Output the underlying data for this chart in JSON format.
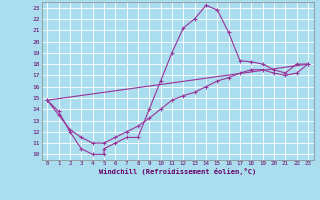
{
  "xlabel": "Windchill (Refroidissement éolien,°C)",
  "background_color": "#aaddee",
  "grid_color": "#ffffff",
  "line_color": "#993399",
  "xlim": [
    -0.5,
    23.5
  ],
  "ylim": [
    9.5,
    23.5
  ],
  "xtick_vals": [
    0,
    1,
    2,
    3,
    4,
    5,
    6,
    7,
    8,
    9,
    10,
    11,
    12,
    13,
    14,
    15,
    16,
    17,
    18,
    19,
    20,
    21,
    22,
    23
  ],
  "ytick_vals": [
    10,
    11,
    12,
    13,
    14,
    15,
    16,
    17,
    18,
    19,
    20,
    21,
    22,
    23
  ],
  "curve1_x": [
    0,
    1,
    2,
    3,
    4,
    5,
    5,
    6,
    7,
    8,
    9,
    10,
    11,
    12,
    13,
    14,
    15,
    16,
    17,
    18,
    19,
    20,
    21,
    22,
    23
  ],
  "curve1_y": [
    14.8,
    13.8,
    12.0,
    10.5,
    10.0,
    10.0,
    10.5,
    11.0,
    11.5,
    11.5,
    14.0,
    16.5,
    19.0,
    21.2,
    22.0,
    23.2,
    22.8,
    20.8,
    18.3,
    18.2,
    18.0,
    17.5,
    17.2,
    18.0,
    18.0
  ],
  "curve2_x": [
    0,
    1,
    2,
    3,
    4,
    5,
    6,
    7,
    8,
    9,
    10,
    11,
    12,
    13,
    14,
    15,
    16,
    17,
    18,
    19,
    20,
    21,
    22,
    23
  ],
  "curve2_y": [
    14.8,
    13.5,
    12.2,
    11.5,
    11.0,
    11.0,
    11.5,
    12.0,
    12.5,
    13.2,
    14.0,
    14.8,
    15.2,
    15.5,
    16.0,
    16.5,
    16.8,
    17.2,
    17.5,
    17.5,
    17.2,
    17.0,
    17.2,
    18.0
  ],
  "curve3_x": [
    0,
    23
  ],
  "curve3_y": [
    14.8,
    18.0
  ]
}
